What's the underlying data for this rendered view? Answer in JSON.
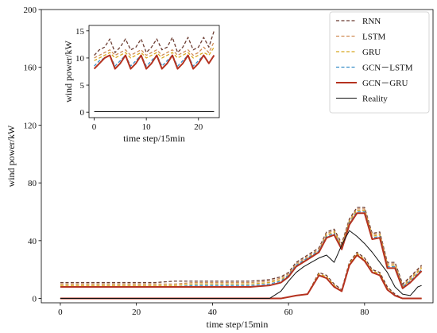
{
  "chart_data": [
    {
      "type": "line",
      "xlabel": "time step/15min",
      "ylabel": "wind power/kW",
      "xlim": [
        -5,
        98
      ],
      "ylim": [
        -3,
        200
      ],
      "xticks": [
        0,
        20,
        40,
        60,
        80
      ],
      "yticks": [
        0,
        40,
        80,
        120,
        160,
        200
      ],
      "legend_position": "top-right",
      "series": [
        {
          "name": "RNN",
          "color": "#6b3b30",
          "style": "dashed",
          "x": [
            0,
            5,
            10,
            15,
            20,
            25,
            30,
            35,
            40,
            45,
            50,
            55,
            58,
            60,
            62,
            65,
            68,
            70,
            72,
            74,
            76,
            78,
            80,
            82,
            84,
            86,
            88,
            90,
            92,
            95
          ],
          "values": [
            11,
            11,
            11,
            11,
            11,
            11,
            12,
            12,
            12,
            12,
            12,
            13,
            15,
            18,
            25,
            30,
            35,
            46,
            48,
            38,
            55,
            63,
            63,
            45,
            46,
            25,
            25,
            10,
            15,
            23
          ],
          "values_lower": [
            0,
            0,
            0,
            0,
            0,
            0,
            0,
            0,
            0,
            0,
            0,
            0,
            0,
            1,
            2,
            3,
            18,
            16,
            10,
            6,
            25,
            32,
            28,
            20,
            18,
            8,
            3,
            0,
            0,
            0
          ]
        },
        {
          "name": "LSTM",
          "color": "#d08c55",
          "style": "dashed",
          "x": [
            0,
            5,
            10,
            15,
            20,
            25,
            30,
            35,
            40,
            45,
            50,
            55,
            58,
            60,
            62,
            65,
            68,
            70,
            72,
            74,
            76,
            78,
            80,
            82,
            84,
            86,
            88,
            90,
            92,
            95
          ],
          "values": [
            10,
            10,
            10,
            10,
            10,
            10,
            10,
            11,
            11,
            11,
            11,
            12,
            14,
            17,
            24,
            29,
            34,
            45,
            47,
            37,
            54,
            62,
            62,
            44,
            45,
            24,
            24,
            9,
            14,
            22
          ],
          "values_lower": [
            0,
            0,
            0,
            0,
            0,
            0,
            0,
            0,
            0,
            0,
            0,
            0,
            0,
            1,
            2,
            3,
            17,
            15,
            9,
            5,
            24,
            31,
            27,
            19,
            17,
            7,
            2,
            0,
            0,
            0
          ]
        },
        {
          "name": "GRU",
          "color": "#d8a820",
          "style": "dashed",
          "x": [
            0,
            5,
            10,
            15,
            20,
            25,
            30,
            35,
            40,
            45,
            50,
            55,
            58,
            60,
            62,
            65,
            68,
            70,
            72,
            74,
            76,
            78,
            80,
            82,
            84,
            86,
            88,
            90,
            92,
            95
          ],
          "values": [
            9,
            9,
            9,
            9,
            9,
            9,
            9,
            10,
            10,
            10,
            10,
            11,
            13,
            16,
            23,
            28,
            33,
            44,
            46,
            36,
            53,
            61,
            61,
            43,
            44,
            23,
            23,
            8,
            13,
            21
          ],
          "values_lower": [
            0,
            0,
            0,
            0,
            0,
            0,
            0,
            0,
            0,
            0,
            0,
            0,
            0,
            1,
            2,
            3,
            17,
            15,
            9,
            5,
            24,
            31,
            27,
            19,
            17,
            7,
            2,
            0,
            0,
            0
          ]
        },
        {
          "name": "GCN－LSTM",
          "color": "#3a8fc8",
          "style": "dashed",
          "x": [
            0,
            5,
            10,
            15,
            20,
            25,
            30,
            35,
            40,
            45,
            50,
            55,
            58,
            60,
            62,
            65,
            68,
            70,
            72,
            74,
            76,
            78,
            80,
            82,
            84,
            86,
            88,
            90,
            92,
            95
          ],
          "values": [
            8,
            8,
            8,
            8,
            8,
            8,
            8,
            9,
            9,
            9,
            9,
            10,
            12,
            16,
            23,
            28,
            33,
            43,
            45,
            35,
            52,
            60,
            60,
            42,
            43,
            22,
            22,
            8,
            12,
            20
          ],
          "values_lower": [
            0,
            0,
            0,
            0,
            0,
            0,
            0,
            0,
            0,
            0,
            0,
            0,
            0,
            1,
            2,
            3,
            16,
            14,
            8,
            5,
            23,
            30,
            26,
            18,
            16,
            6,
            2,
            0,
            0,
            0
          ]
        },
        {
          "name": "GCN－GRU",
          "color": "#b5321f",
          "style": "solid-thick",
          "x": [
            0,
            5,
            10,
            15,
            20,
            25,
            30,
            35,
            40,
            45,
            50,
            55,
            58,
            60,
            62,
            65,
            68,
            70,
            72,
            74,
            76,
            78,
            80,
            82,
            84,
            86,
            88,
            90,
            92,
            95
          ],
          "values": [
            8,
            8,
            8,
            8,
            8,
            8,
            8,
            8,
            8,
            8,
            8,
            9,
            11,
            15,
            22,
            27,
            32,
            42,
            44,
            34,
            51,
            59,
            59,
            41,
            42,
            21,
            21,
            7,
            11,
            19
          ],
          "values_lower": [
            0,
            0,
            0,
            0,
            0,
            0,
            0,
            0,
            0,
            0,
            0,
            0,
            0,
            1,
            2,
            3,
            16,
            14,
            8,
            5,
            23,
            30,
            26,
            18,
            16,
            6,
            2,
            0,
            0,
            0
          ]
        },
        {
          "name": "Reality",
          "color": "#111111",
          "style": "solid",
          "x": [
            0,
            10,
            20,
            30,
            40,
            50,
            55,
            58,
            60,
            62,
            64,
            66,
            68,
            70,
            72,
            74,
            76,
            78,
            80,
            82,
            84,
            86,
            88,
            90,
            92,
            94,
            95
          ],
          "values": [
            0,
            0,
            0,
            0,
            0,
            0,
            0,
            5,
            12,
            18,
            22,
            25,
            28,
            30,
            25,
            37,
            47,
            43,
            38,
            32,
            25,
            18,
            8,
            3,
            2,
            8,
            9
          ]
        }
      ]
    },
    {
      "type": "line",
      "xlabel": "time step/15min",
      "ylabel": "wind power/kW",
      "xlim": [
        -1,
        24
      ],
      "ylim": [
        -1,
        16
      ],
      "xticks": [
        0,
        10,
        20
      ],
      "yticks": [
        0,
        5,
        10,
        15
      ],
      "series": [
        {
          "name": "RNN",
          "color": "#6b3b30",
          "style": "dashed",
          "x": [
            0,
            1,
            2,
            3,
            4,
            5,
            6,
            7,
            8,
            9,
            10,
            11,
            12,
            13,
            14,
            15,
            16,
            17,
            18,
            19,
            20,
            21,
            22,
            23
          ],
          "values": [
            10.5,
            11.5,
            12,
            13.5,
            11,
            12,
            13.5,
            11.5,
            12,
            13.5,
            11,
            12,
            13.5,
            11.5,
            12,
            13.8,
            11,
            12,
            13.8,
            11.5,
            12,
            13.8,
            12,
            15
          ]
        },
        {
          "name": "LSTM",
          "color": "#d08c55",
          "style": "dashed",
          "x": [
            0,
            1,
            2,
            3,
            4,
            5,
            6,
            7,
            8,
            9,
            10,
            11,
            12,
            13,
            14,
            15,
            16,
            17,
            18,
            19,
            20,
            21,
            22,
            23
          ],
          "values": [
            10,
            10.5,
            11,
            11.5,
            10.5,
            11,
            11.5,
            10.5,
            11,
            11.5,
            10.5,
            11,
            11.5,
            10.5,
            11,
            11.5,
            10.5,
            11,
            11.5,
            10.5,
            11,
            12,
            11,
            13
          ]
        },
        {
          "name": "GRU",
          "color": "#d8a820",
          "style": "dashed",
          "x": [
            0,
            1,
            2,
            3,
            4,
            5,
            6,
            7,
            8,
            9,
            10,
            11,
            12,
            13,
            14,
            15,
            16,
            17,
            18,
            19,
            20,
            21,
            22,
            23
          ],
          "values": [
            9.5,
            10,
            10.5,
            11,
            10,
            10.5,
            11,
            10,
            10.5,
            11,
            10,
            10.5,
            11,
            10,
            10.5,
            11,
            10,
            10.5,
            11,
            10,
            10.5,
            11,
            10.5,
            12
          ]
        },
        {
          "name": "GCN－LSTM",
          "color": "#3a8fc8",
          "style": "dashed",
          "x": [
            0,
            1,
            2,
            3,
            4,
            5,
            6,
            7,
            8,
            9,
            10,
            11,
            12,
            13,
            14,
            15,
            16,
            17,
            18,
            19,
            20,
            21,
            22,
            23
          ],
          "values": [
            8.5,
            9.5,
            10,
            10.5,
            8.5,
            9.5,
            10.5,
            8.5,
            9.5,
            10.5,
            8.5,
            9.5,
            10.5,
            8.5,
            9.5,
            10.5,
            8.5,
            9.5,
            10.5,
            8.5,
            9.5,
            10.5,
            9,
            10.5
          ]
        },
        {
          "name": "GCN－GRU",
          "color": "#b5321f",
          "style": "solid-thick",
          "x": [
            0,
            1,
            2,
            3,
            4,
            5,
            6,
            7,
            8,
            9,
            10,
            11,
            12,
            13,
            14,
            15,
            16,
            17,
            18,
            19,
            20,
            21,
            22,
            23
          ],
          "values": [
            8,
            9,
            10,
            10.5,
            8,
            9,
            10.5,
            8,
            9,
            10.5,
            8,
            9,
            10.5,
            8,
            9,
            10.5,
            8,
            9,
            10.5,
            8,
            9,
            10.5,
            9,
            10.5
          ]
        },
        {
          "name": "Reality",
          "color": "#111111",
          "style": "solid",
          "x": [
            0,
            1,
            2,
            3,
            4,
            5,
            6,
            7,
            8,
            9,
            10,
            11,
            12,
            13,
            14,
            15,
            16,
            17,
            18,
            19,
            20,
            21,
            22,
            23
          ],
          "values": [
            0.1,
            0.1,
            0.1,
            0.1,
            0.1,
            0.1,
            0.1,
            0.1,
            0.1,
            0.1,
            0.1,
            0.1,
            0.1,
            0.1,
            0.1,
            0.1,
            0.1,
            0.1,
            0.1,
            0.1,
            0.1,
            0.1,
            0.1,
            0.1
          ]
        }
      ]
    }
  ]
}
